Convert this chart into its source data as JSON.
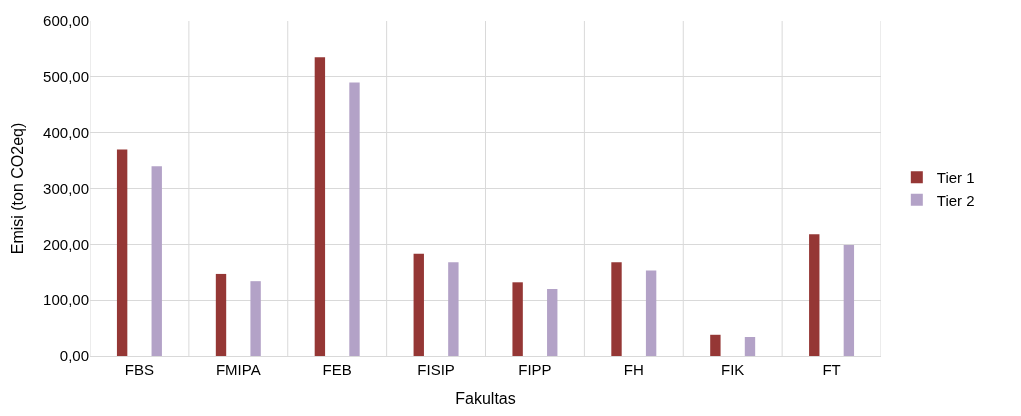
{
  "chart_data": {
    "type": "bar",
    "xlabel": "Fakultas",
    "ylabel": "Emisi (ton CO2eq)",
    "categories": [
      "FBS",
      "FMIPA",
      "FEB",
      "FISIP",
      "FIPP",
      "FH",
      "FIK",
      "FT"
    ],
    "series": [
      {
        "name": "Tier 1",
        "color": "#953735",
        "values": [
          370,
          147,
          535,
          183,
          132,
          168,
          38,
          218
        ]
      },
      {
        "name": "Tier 2",
        "color": "#b3a2c7",
        "values": [
          340,
          134,
          490,
          168,
          120,
          153,
          34,
          199
        ]
      }
    ],
    "ylim": [
      0,
      600
    ],
    "yticks": [
      {
        "value": 0,
        "label": "0,00"
      },
      {
        "value": 100,
        "label": "100,00"
      },
      {
        "value": 200,
        "label": "200,00"
      },
      {
        "value": 300,
        "label": "300,00"
      },
      {
        "value": 400,
        "label": "400,00"
      },
      {
        "value": 500,
        "label": "500,00"
      },
      {
        "value": 600,
        "label": "600,00"
      }
    ],
    "grid": true,
    "legend": "right"
  }
}
